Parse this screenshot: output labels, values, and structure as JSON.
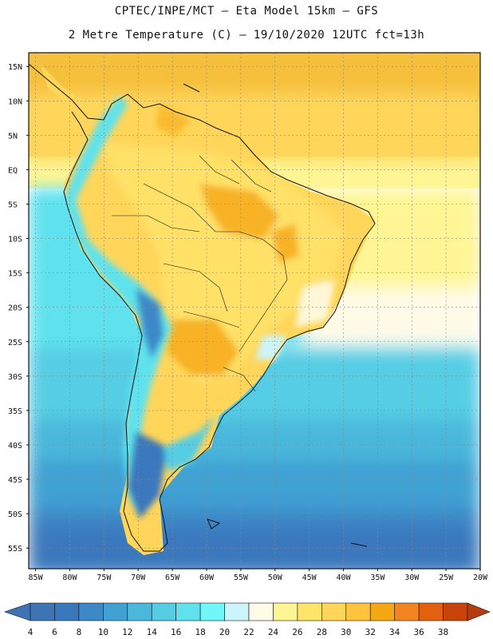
{
  "header": {
    "line1": "CPTEC/INPE/MCT –  Eta Model 15km – GFS",
    "line2": "2 Metre Temperature (C) – 19/10/2020 12UTC fct=13h"
  },
  "map": {
    "lon_range": [
      -86,
      -20
    ],
    "lat_range": [
      -58,
      17
    ],
    "lat_ticks": [
      "15N",
      "10N",
      "5N",
      "EQ",
      "5S",
      "10S",
      "15S",
      "20S",
      "25S",
      "30S",
      "35S",
      "40S",
      "45S",
      "50S",
      "55S"
    ],
    "lat_tick_values": [
      15,
      10,
      5,
      0,
      -5,
      -10,
      -15,
      -20,
      -25,
      -30,
      -35,
      -40,
      -45,
      -50,
      -55
    ],
    "lon_ticks": [
      "85W",
      "80W",
      "75W",
      "70W",
      "65W",
      "60W",
      "55W",
      "50W",
      "45W",
      "40W",
      "35W",
      "30W",
      "25W",
      "20W"
    ],
    "lon_tick_values": [
      -85,
      -80,
      -75,
      -70,
      -65,
      -60,
      -55,
      -50,
      -45,
      -40,
      -35,
      -30,
      -25,
      -20
    ],
    "grid": true
  },
  "colorbar": {
    "labels": [
      "4",
      "6",
      "8",
      "10",
      "12",
      "14",
      "16",
      "18",
      "20",
      "22",
      "24",
      "26",
      "28",
      "30",
      "32",
      "34",
      "36",
      "38"
    ],
    "colors": [
      "#3f74b4",
      "#3a78bd",
      "#3d88c8",
      "#41a1d3",
      "#4ab7dc",
      "#55cde4",
      "#5fe2ee",
      "#6ff7fa",
      "#ccf5fb",
      "#fffbe6",
      "#fff594",
      "#ffe46a",
      "#ffd65a",
      "#ffc33c",
      "#f5a813",
      "#f28522",
      "#e2600e",
      "#c8420a"
    ],
    "under_color": "#3f74b4",
    "over_color": "#b43c0f"
  }
}
